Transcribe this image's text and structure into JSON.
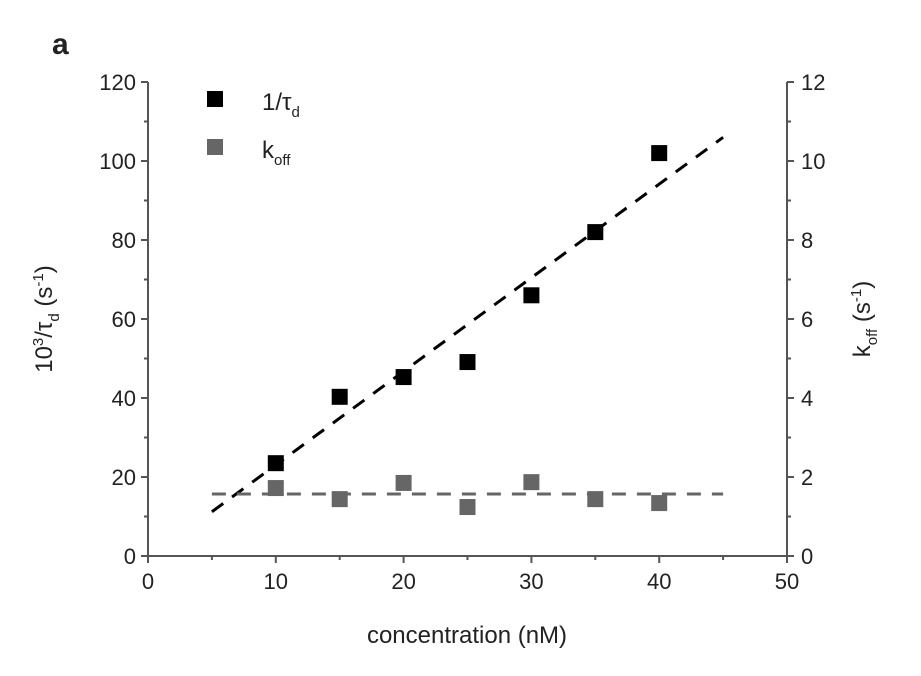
{
  "chart_data": {
    "type": "scatter",
    "panel_label": "a",
    "xlabel": "concentration (nM)",
    "ylabel_left": {
      "base": "10",
      "sup": "3",
      "mid": "/τ",
      "sub": "d",
      "unit": " (s",
      "unit_sup": "-1",
      "unit_end": ")"
    },
    "ylabel_right": {
      "base": "k",
      "sub": "off",
      "unit": " (s",
      "unit_sup": "-1",
      "unit_end": ")"
    },
    "xlim": [
      0,
      50
    ],
    "ylim_left": [
      0,
      120
    ],
    "ylim_right": [
      0,
      12
    ],
    "xticks": [
      "0",
      "10",
      "20",
      "30",
      "40",
      "50"
    ],
    "yticks_left": [
      "0",
      "20",
      "40",
      "60",
      "80",
      "100",
      "120"
    ],
    "yticks_right": [
      "0",
      "2",
      "4",
      "6",
      "8",
      "10",
      "12"
    ],
    "grid": false,
    "legend_position": "top-left",
    "series": [
      {
        "name": "1/τd",
        "legend_base": "1/τ",
        "legend_sub": "d",
        "axis": "left",
        "color": "#000000",
        "x": [
          10,
          15,
          20,
          25,
          30,
          35,
          40
        ],
        "y": [
          23.5,
          40.3,
          45.3,
          49.1,
          66,
          82,
          102
        ],
        "fit": {
          "x": [
            5,
            45
          ],
          "y": [
            11.2,
            106
          ]
        }
      },
      {
        "name": "koff",
        "legend_base": "k",
        "legend_sub": "off",
        "axis": "right",
        "color": "#666666",
        "x": [
          10,
          15,
          20,
          25,
          30,
          35,
          40
        ],
        "y": [
          1.72,
          1.44,
          1.85,
          1.24,
          1.87,
          1.44,
          1.34
        ],
        "fit": {
          "x": [
            5,
            45
          ],
          "y": [
            1.57,
            1.57
          ]
        }
      }
    ]
  }
}
